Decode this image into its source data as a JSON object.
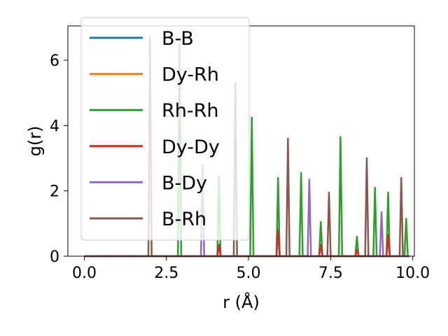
{
  "chart_data": {
    "type": "line",
    "title": "",
    "xlabel": "r (Å)",
    "ylabel": "g(r)",
    "xlim": [
      -0.5,
      10.05
    ],
    "ylim": [
      0,
      7.05
    ],
    "xticks": [
      0.0,
      2.5,
      5.0,
      7.5,
      10.0
    ],
    "xtick_labels": [
      "0.0",
      "2.5",
      "5.0",
      "7.5",
      "10.0"
    ],
    "yticks": [
      0,
      2,
      4,
      6
    ],
    "ytick_labels": [
      "0",
      "2",
      "4",
      "6"
    ],
    "grid": false,
    "legend_position": "top-left",
    "x_range": [
      0,
      9.9
    ],
    "series": [
      {
        "name": "B-B",
        "color": "#1f77b4",
        "peaks": [],
        "values_note": ""
      },
      {
        "name": "Dy-Rh",
        "color": "#ff7f0e",
        "peaks": []
      },
      {
        "name": "Rh-Rh",
        "color": "#2ca02c",
        "peaks": [
          [
            2.9,
            6.5
          ],
          [
            4.1,
            2.45
          ],
          [
            5.1,
            4.25
          ],
          [
            5.9,
            2.4
          ],
          [
            6.6,
            2.55
          ],
          [
            7.2,
            1.05
          ],
          [
            7.8,
            3.65
          ],
          [
            8.3,
            0.6
          ],
          [
            8.85,
            2.1
          ],
          [
            9.25,
            1.95
          ],
          [
            9.8,
            1.15
          ]
        ]
      },
      {
        "name": "Dy-Dy",
        "color": "#d62728",
        "peaks": [
          [
            4.1,
            0.35
          ],
          [
            5.9,
            0.8
          ],
          [
            7.2,
            0.35
          ],
          [
            8.3,
            0.2
          ],
          [
            9.25,
            0.65
          ]
        ]
      },
      {
        "name": "B-Dy",
        "color": "#9467bd",
        "peaks": [
          [
            3.6,
            2.8
          ],
          [
            6.85,
            2.35
          ],
          [
            9.05,
            1.35
          ]
        ]
      },
      {
        "name": "B-Rh",
        "color": "#8c564b",
        "peaks": [
          [
            2.0,
            6.7
          ],
          [
            4.6,
            5.3
          ],
          [
            6.2,
            3.6
          ],
          [
            7.45,
            1.95
          ],
          [
            8.6,
            3.0
          ],
          [
            9.65,
            2.4
          ]
        ]
      }
    ]
  }
}
